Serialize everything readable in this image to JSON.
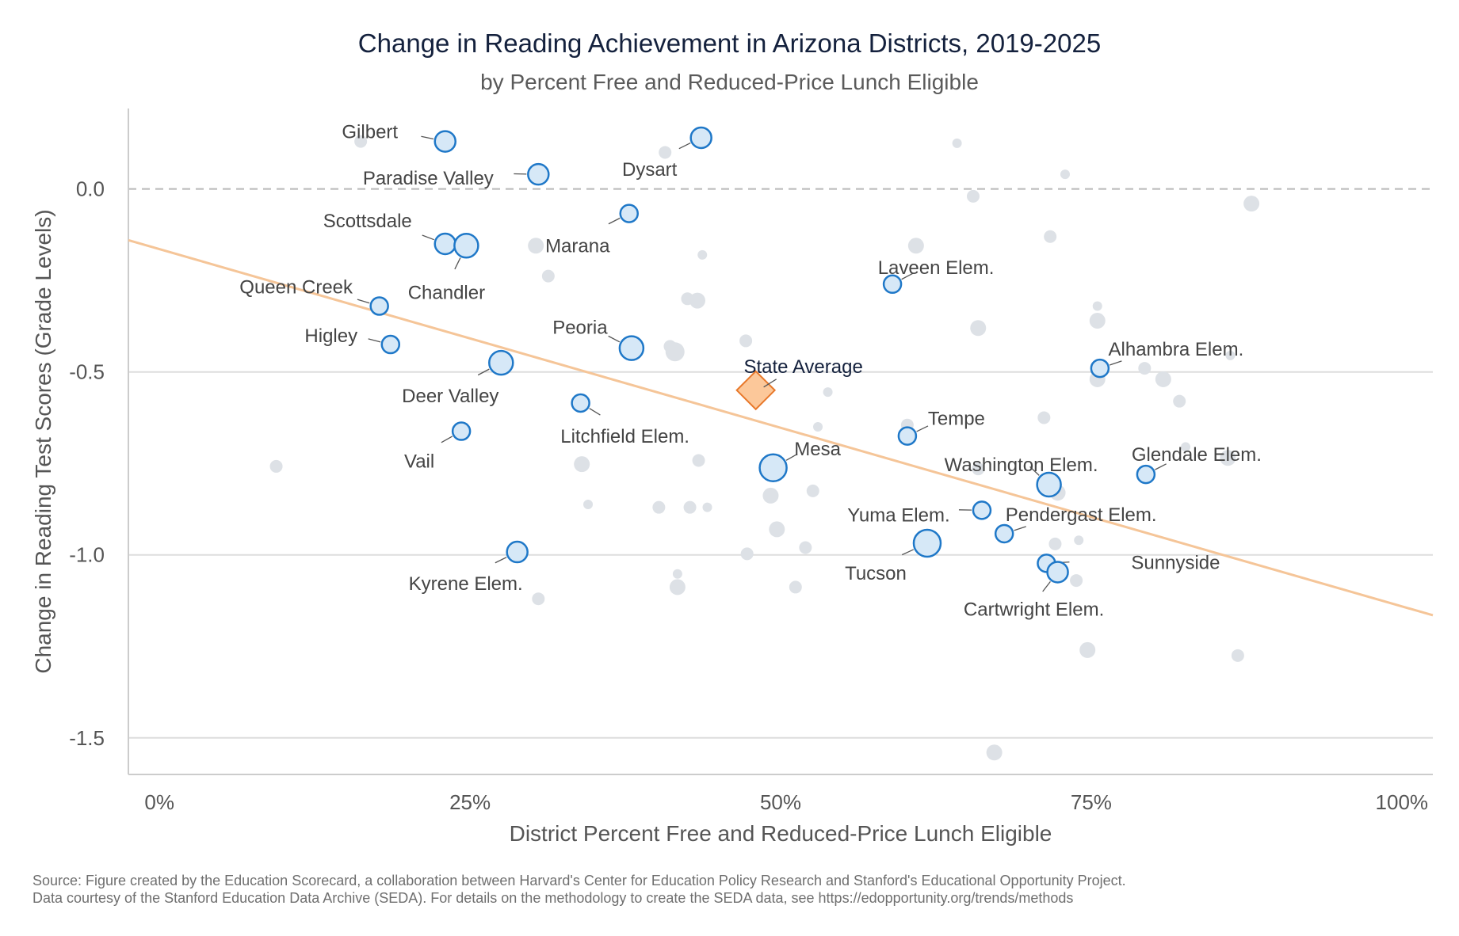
{
  "header": {
    "title": "Change in Reading Achievement in Arizona Districts, 2019-2025",
    "subtitle": "by Percent Free and Reduced-Price Lunch Eligible"
  },
  "footer": {
    "source_line_1": "Source: Figure created by the Education Scorecard, a collaboration between Harvard's Center for Education Policy Research and Stanford's Educational Opportunity Project.",
    "source_line_2": "Data courtesy of the Stanford Education Data Archive (SEDA). For details on the methodology to create the SEDA data, see https://edopportunity.org/trends/methods"
  },
  "colors": {
    "highlight_fill": "#d6e8f7",
    "highlight_stroke": "#1f78c8",
    "background_point": "#dde1e6",
    "trend_line": "#f5c598",
    "state_fill": "#fcc89a",
    "state_stroke": "#e8782a",
    "reference_line": "#b8b8b8",
    "grid": "#dddddd"
  },
  "chart_data": {
    "type": "scatter",
    "title": "Change in Reading Achievement in Arizona Districts, 2019-2025",
    "subtitle": "by Percent Free and Reduced-Price Lunch Eligible",
    "xlabel": "District Percent Free and Reduced-Price Lunch Eligible",
    "ylabel": "Change in Reading Test Scores (Grade Levels)",
    "xlim": [
      -0.025,
      1.025
    ],
    "ylim": [
      -1.6,
      0.22
    ],
    "x_ticks": [
      0,
      0.25,
      0.5,
      0.75,
      1.0
    ],
    "x_tick_labels": [
      "0%",
      "25%",
      "50%",
      "75%",
      "100%"
    ],
    "y_ticks": [
      0.0,
      -0.5,
      -1.0,
      -1.5
    ],
    "y_tick_labels": [
      "0.0",
      "-0.5",
      "-1.0",
      "-1.5"
    ],
    "grid": "horizontal",
    "reference_line_y": 0.0,
    "trend_line": {
      "x": [
        -0.025,
        1.025
      ],
      "y": [
        -0.14,
        -1.165
      ]
    },
    "state_average": {
      "label": "State Average",
      "x": 0.48,
      "y": -0.55
    },
    "highlighted_districts": [
      {
        "name": "Gilbert",
        "x": 0.23,
        "y": 0.13,
        "size": 2
      },
      {
        "name": "Paradise Valley",
        "x": 0.305,
        "y": 0.04,
        "size": 2
      },
      {
        "name": "Dysart",
        "x": 0.436,
        "y": 0.14,
        "size": 2
      },
      {
        "name": "Scottsdale",
        "x": 0.23,
        "y": -0.15,
        "size": 2
      },
      {
        "name": "Chandler",
        "x": 0.247,
        "y": -0.155,
        "size": 3
      },
      {
        "name": "Marana",
        "x": 0.378,
        "y": -0.067,
        "size": 1
      },
      {
        "name": "Queen Creek",
        "x": 0.177,
        "y": -0.32,
        "size": 1
      },
      {
        "name": "Higley",
        "x": 0.186,
        "y": -0.425,
        "size": 1
      },
      {
        "name": "Peoria",
        "x": 0.38,
        "y": -0.435,
        "size": 3
      },
      {
        "name": "Deer Valley",
        "x": 0.275,
        "y": -0.475,
        "size": 3
      },
      {
        "name": "Laveen Elem.",
        "x": 0.59,
        "y": -0.26,
        "size": 1
      },
      {
        "name": "Alhambra Elem.",
        "x": 0.757,
        "y": -0.49,
        "size": 1
      },
      {
        "name": "Litchfield Elem.",
        "x": 0.339,
        "y": -0.585,
        "size": 1
      },
      {
        "name": "Vail",
        "x": 0.243,
        "y": -0.662,
        "size": 1
      },
      {
        "name": "Tempe",
        "x": 0.602,
        "y": -0.675,
        "size": 1
      },
      {
        "name": "Mesa",
        "x": 0.494,
        "y": -0.762,
        "size": 4
      },
      {
        "name": "Washington Elem.",
        "x": 0.716,
        "y": -0.808,
        "size": 3
      },
      {
        "name": "Glendale Elem.",
        "x": 0.794,
        "y": -0.78,
        "size": 1
      },
      {
        "name": "Yuma Elem.",
        "x": 0.662,
        "y": -0.878,
        "size": 1
      },
      {
        "name": "Pendergast Elem.",
        "x": 0.68,
        "y": -0.942,
        "size": 1
      },
      {
        "name": "Tucson",
        "x": 0.618,
        "y": -0.968,
        "size": 4
      },
      {
        "name": "Kyrene Elem.",
        "x": 0.288,
        "y": -0.992,
        "size": 2
      },
      {
        "name": "Sunnyside",
        "x": 0.714,
        "y": -1.023,
        "size": 1
      },
      {
        "name": "Cartwright Elem.",
        "x": 0.723,
        "y": -1.047,
        "size": 2
      }
    ],
    "other_districts": [
      {
        "x": 0.162,
        "y": 0.13,
        "size": 1
      },
      {
        "x": 0.407,
        "y": 0.1,
        "size": 1
      },
      {
        "x": 0.642,
        "y": 0.125,
        "size": 0
      },
      {
        "x": 0.729,
        "y": 0.04,
        "size": 0
      },
      {
        "x": 0.655,
        "y": -0.02,
        "size": 1
      },
      {
        "x": 0.879,
        "y": -0.04,
        "size": 2
      },
      {
        "x": 0.303,
        "y": -0.155,
        "size": 2
      },
      {
        "x": 0.609,
        "y": -0.155,
        "size": 2
      },
      {
        "x": 0.717,
        "y": -0.13,
        "size": 1
      },
      {
        "x": 0.437,
        "y": -0.18,
        "size": 0
      },
      {
        "x": 0.313,
        "y": -0.238,
        "size": 1
      },
      {
        "x": 0.425,
        "y": -0.3,
        "size": 1
      },
      {
        "x": 0.433,
        "y": -0.305,
        "size": 2
      },
      {
        "x": 0.659,
        "y": -0.38,
        "size": 2
      },
      {
        "x": 0.755,
        "y": -0.32,
        "size": 0
      },
      {
        "x": 0.755,
        "y": -0.36,
        "size": 2
      },
      {
        "x": 0.472,
        "y": -0.415,
        "size": 1
      },
      {
        "x": 0.411,
        "y": -0.43,
        "size": 1
      },
      {
        "x": 0.415,
        "y": -0.445,
        "size": 3
      },
      {
        "x": 0.862,
        "y": -0.455,
        "size": 0
      },
      {
        "x": 0.793,
        "y": -0.49,
        "size": 1
      },
      {
        "x": 0.755,
        "y": -0.52,
        "size": 2
      },
      {
        "x": 0.808,
        "y": -0.52,
        "size": 2
      },
      {
        "x": 0.538,
        "y": -0.555,
        "size": 0
      },
      {
        "x": 0.821,
        "y": -0.58,
        "size": 1
      },
      {
        "x": 0.712,
        "y": -0.625,
        "size": 1
      },
      {
        "x": 0.53,
        "y": -0.65,
        "size": 0
      },
      {
        "x": 0.602,
        "y": -0.645,
        "size": 1
      },
      {
        "x": 0.826,
        "y": -0.705,
        "size": 0
      },
      {
        "x": 0.86,
        "y": -0.735,
        "size": 2
      },
      {
        "x": 0.094,
        "y": -0.758,
        "size": 1
      },
      {
        "x": 0.34,
        "y": -0.752,
        "size": 2
      },
      {
        "x": 0.434,
        "y": -0.742,
        "size": 1
      },
      {
        "x": 0.659,
        "y": -0.765,
        "size": 1
      },
      {
        "x": 0.723,
        "y": -0.83,
        "size": 2
      },
      {
        "x": 0.526,
        "y": -0.825,
        "size": 1
      },
      {
        "x": 0.492,
        "y": -0.838,
        "size": 2
      },
      {
        "x": 0.345,
        "y": -0.862,
        "size": 0
      },
      {
        "x": 0.402,
        "y": -0.87,
        "size": 1
      },
      {
        "x": 0.427,
        "y": -0.87,
        "size": 1
      },
      {
        "x": 0.441,
        "y": -0.87,
        "size": 0
      },
      {
        "x": 0.497,
        "y": -0.93,
        "size": 2
      },
      {
        "x": 0.52,
        "y": -0.98,
        "size": 1
      },
      {
        "x": 0.473,
        "y": -0.997,
        "size": 1
      },
      {
        "x": 0.721,
        "y": -0.97,
        "size": 1
      },
      {
        "x": 0.74,
        "y": -0.96,
        "size": 0
      },
      {
        "x": 0.417,
        "y": -1.052,
        "size": 0
      },
      {
        "x": 0.417,
        "y": -1.088,
        "size": 2
      },
      {
        "x": 0.512,
        "y": -1.088,
        "size": 1
      },
      {
        "x": 0.305,
        "y": -1.12,
        "size": 1
      },
      {
        "x": 0.738,
        "y": -1.07,
        "size": 1
      },
      {
        "x": 0.747,
        "y": -1.26,
        "size": 2
      },
      {
        "x": 0.868,
        "y": -1.275,
        "size": 1
      },
      {
        "x": 0.672,
        "y": -1.54,
        "size": 2
      }
    ]
  }
}
